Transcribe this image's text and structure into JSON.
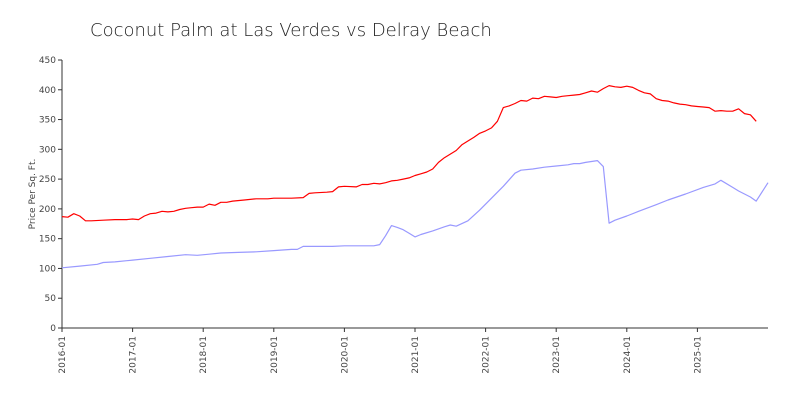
{
  "chart_data": {
    "type": "line",
    "title": "Coconut Palm at Las Verdes vs Delray Beach",
    "xlabel": "",
    "ylabel": "Price Per Sq. Ft.",
    "ylim": [
      0,
      450
    ],
    "yticks": [
      0,
      50,
      100,
      150,
      200,
      250,
      300,
      350,
      400,
      450
    ],
    "xticks": [
      "2016-01",
      "2017-01",
      "2018-01",
      "2019-01",
      "2020-01",
      "2021-01",
      "2022-01",
      "2023-01",
      "2024-01",
      "2025-01"
    ],
    "grid": false,
    "legend": "none",
    "series": [
      {
        "color": "#ff0000",
        "points": [
          [
            "2016-01",
            187
          ],
          [
            "2016-02",
            186
          ],
          [
            "2016-03",
            192
          ],
          [
            "2016-04",
            188
          ],
          [
            "2016-05",
            180
          ],
          [
            "2016-06",
            180
          ],
          [
            "2016-08",
            181
          ],
          [
            "2016-10",
            182
          ],
          [
            "2016-12",
            182
          ],
          [
            "2017-01",
            183
          ],
          [
            "2017-02",
            182
          ],
          [
            "2017-03",
            188
          ],
          [
            "2017-04",
            192
          ],
          [
            "2017-05",
            193
          ],
          [
            "2017-06",
            196
          ],
          [
            "2017-07",
            195
          ],
          [
            "2017-08",
            196
          ],
          [
            "2017-09",
            199
          ],
          [
            "2017-10",
            201
          ],
          [
            "2017-11",
            202
          ],
          [
            "2017-12",
            203
          ],
          [
            "2018-01",
            203
          ],
          [
            "2018-02",
            208
          ],
          [
            "2018-03",
            206
          ],
          [
            "2018-04",
            211
          ],
          [
            "2018-05",
            211
          ],
          [
            "2018-06",
            213
          ],
          [
            "2018-08",
            215
          ],
          [
            "2018-10",
            217
          ],
          [
            "2018-12",
            217
          ],
          [
            "2019-01",
            218
          ],
          [
            "2019-04",
            218
          ],
          [
            "2019-06",
            219
          ],
          [
            "2019-07",
            226
          ],
          [
            "2019-08",
            227
          ],
          [
            "2019-10",
            228
          ],
          [
            "2019-11",
            229
          ],
          [
            "2019-12",
            237
          ],
          [
            "2020-01",
            238
          ],
          [
            "2020-03",
            237
          ],
          [
            "2020-04",
            241
          ],
          [
            "2020-05",
            241
          ],
          [
            "2020-06",
            243
          ],
          [
            "2020-07",
            242
          ],
          [
            "2020-08",
            244
          ],
          [
            "2020-09",
            247
          ],
          [
            "2020-10",
            248
          ],
          [
            "2020-11",
            250
          ],
          [
            "2020-12",
            252
          ],
          [
            "2021-01",
            256
          ],
          [
            "2021-02",
            259
          ],
          [
            "2021-03",
            262
          ],
          [
            "2021-04",
            267
          ],
          [
            "2021-05",
            278
          ],
          [
            "2021-06",
            286
          ],
          [
            "2021-07",
            292
          ],
          [
            "2021-08",
            298
          ],
          [
            "2021-09",
            308
          ],
          [
            "2021-10",
            314
          ],
          [
            "2021-11",
            320
          ],
          [
            "2021-12",
            327
          ],
          [
            "2022-01",
            331
          ],
          [
            "2022-02",
            336
          ],
          [
            "2022-03",
            347
          ],
          [
            "2022-04",
            370
          ],
          [
            "2022-05",
            373
          ],
          [
            "2022-06",
            377
          ],
          [
            "2022-07",
            382
          ],
          [
            "2022-08",
            381
          ],
          [
            "2022-09",
            386
          ],
          [
            "2022-10",
            385
          ],
          [
            "2022-11",
            389
          ],
          [
            "2022-12",
            388
          ],
          [
            "2023-01",
            387
          ],
          [
            "2023-02",
            389
          ],
          [
            "2023-03",
            390
          ],
          [
            "2023-04",
            391
          ],
          [
            "2023-05",
            392
          ],
          [
            "2023-06",
            395
          ],
          [
            "2023-07",
            398
          ],
          [
            "2023-08",
            396
          ],
          [
            "2023-09",
            402
          ],
          [
            "2023-10",
            407
          ],
          [
            "2023-11",
            405
          ],
          [
            "2023-12",
            404
          ],
          [
            "2024-01",
            406
          ],
          [
            "2024-02",
            404
          ],
          [
            "2024-03",
            399
          ],
          [
            "2024-04",
            395
          ],
          [
            "2024-05",
            393
          ],
          [
            "2024-06",
            385
          ],
          [
            "2024-07",
            382
          ],
          [
            "2024-08",
            381
          ],
          [
            "2024-09",
            378
          ],
          [
            "2024-10",
            376
          ],
          [
            "2024-11",
            375
          ],
          [
            "2024-12",
            373
          ],
          [
            "2025-01",
            372
          ],
          [
            "2025-02",
            371
          ],
          [
            "2025-03",
            370
          ],
          [
            "2025-04",
            364
          ],
          [
            "2025-05",
            365
          ],
          [
            "2025-06",
            364
          ],
          [
            "2025-07",
            364
          ],
          [
            "2025-08",
            368
          ],
          [
            "2025-09",
            360
          ],
          [
            "2025-10",
            358
          ],
          [
            "2025-11",
            347
          ]
        ]
      },
      {
        "color": "#9999ff",
        "points": [
          [
            "2016-01",
            101
          ],
          [
            "2016-04",
            104
          ],
          [
            "2016-07",
            107
          ],
          [
            "2016-08",
            110
          ],
          [
            "2016-10",
            111
          ],
          [
            "2017-01",
            114
          ],
          [
            "2017-04",
            117
          ],
          [
            "2017-07",
            120
          ],
          [
            "2017-10",
            123
          ],
          [
            "2017-12",
            122
          ],
          [
            "2018-02",
            124
          ],
          [
            "2018-04",
            126
          ],
          [
            "2018-07",
            127
          ],
          [
            "2018-10",
            128
          ],
          [
            "2019-01",
            130
          ],
          [
            "2019-04",
            132
          ],
          [
            "2019-05",
            132
          ],
          [
            "2019-06",
            137
          ],
          [
            "2019-09",
            137
          ],
          [
            "2019-11",
            137
          ],
          [
            "2020-01",
            138
          ],
          [
            "2020-04",
            138
          ],
          [
            "2020-06",
            138
          ],
          [
            "2020-07",
            140
          ],
          [
            "2020-08",
            155
          ],
          [
            "2020-09",
            172
          ],
          [
            "2020-10",
            169
          ],
          [
            "2020-11",
            165
          ],
          [
            "2020-12",
            159
          ],
          [
            "2021-01",
            153
          ],
          [
            "2021-02",
            157
          ],
          [
            "2021-04",
            163
          ],
          [
            "2021-06",
            170
          ],
          [
            "2021-07",
            173
          ],
          [
            "2021-08",
            171
          ],
          [
            "2021-10",
            180
          ],
          [
            "2021-12",
            198
          ],
          [
            "2022-02",
            218
          ],
          [
            "2022-04",
            238
          ],
          [
            "2022-06",
            260
          ],
          [
            "2022-07",
            265
          ],
          [
            "2022-09",
            267
          ],
          [
            "2022-11",
            270
          ],
          [
            "2023-01",
            272
          ],
          [
            "2023-03",
            274
          ],
          [
            "2023-04",
            276
          ],
          [
            "2023-05",
            276
          ],
          [
            "2023-06",
            278
          ],
          [
            "2023-08",
            281
          ],
          [
            "2023-09",
            271
          ],
          [
            "2023-10",
            176
          ],
          [
            "2023-11",
            181
          ],
          [
            "2024-01",
            188
          ],
          [
            "2024-03",
            196
          ],
          [
            "2024-06",
            207
          ],
          [
            "2024-08",
            215
          ],
          [
            "2024-11",
            225
          ],
          [
            "2025-02",
            236
          ],
          [
            "2025-04",
            242
          ],
          [
            "2025-05",
            248
          ],
          [
            "2025-07",
            236
          ],
          [
            "2025-08",
            230
          ],
          [
            "2025-10",
            220
          ],
          [
            "2025-11",
            213
          ],
          [
            "2026-01",
            244
          ]
        ]
      }
    ]
  }
}
